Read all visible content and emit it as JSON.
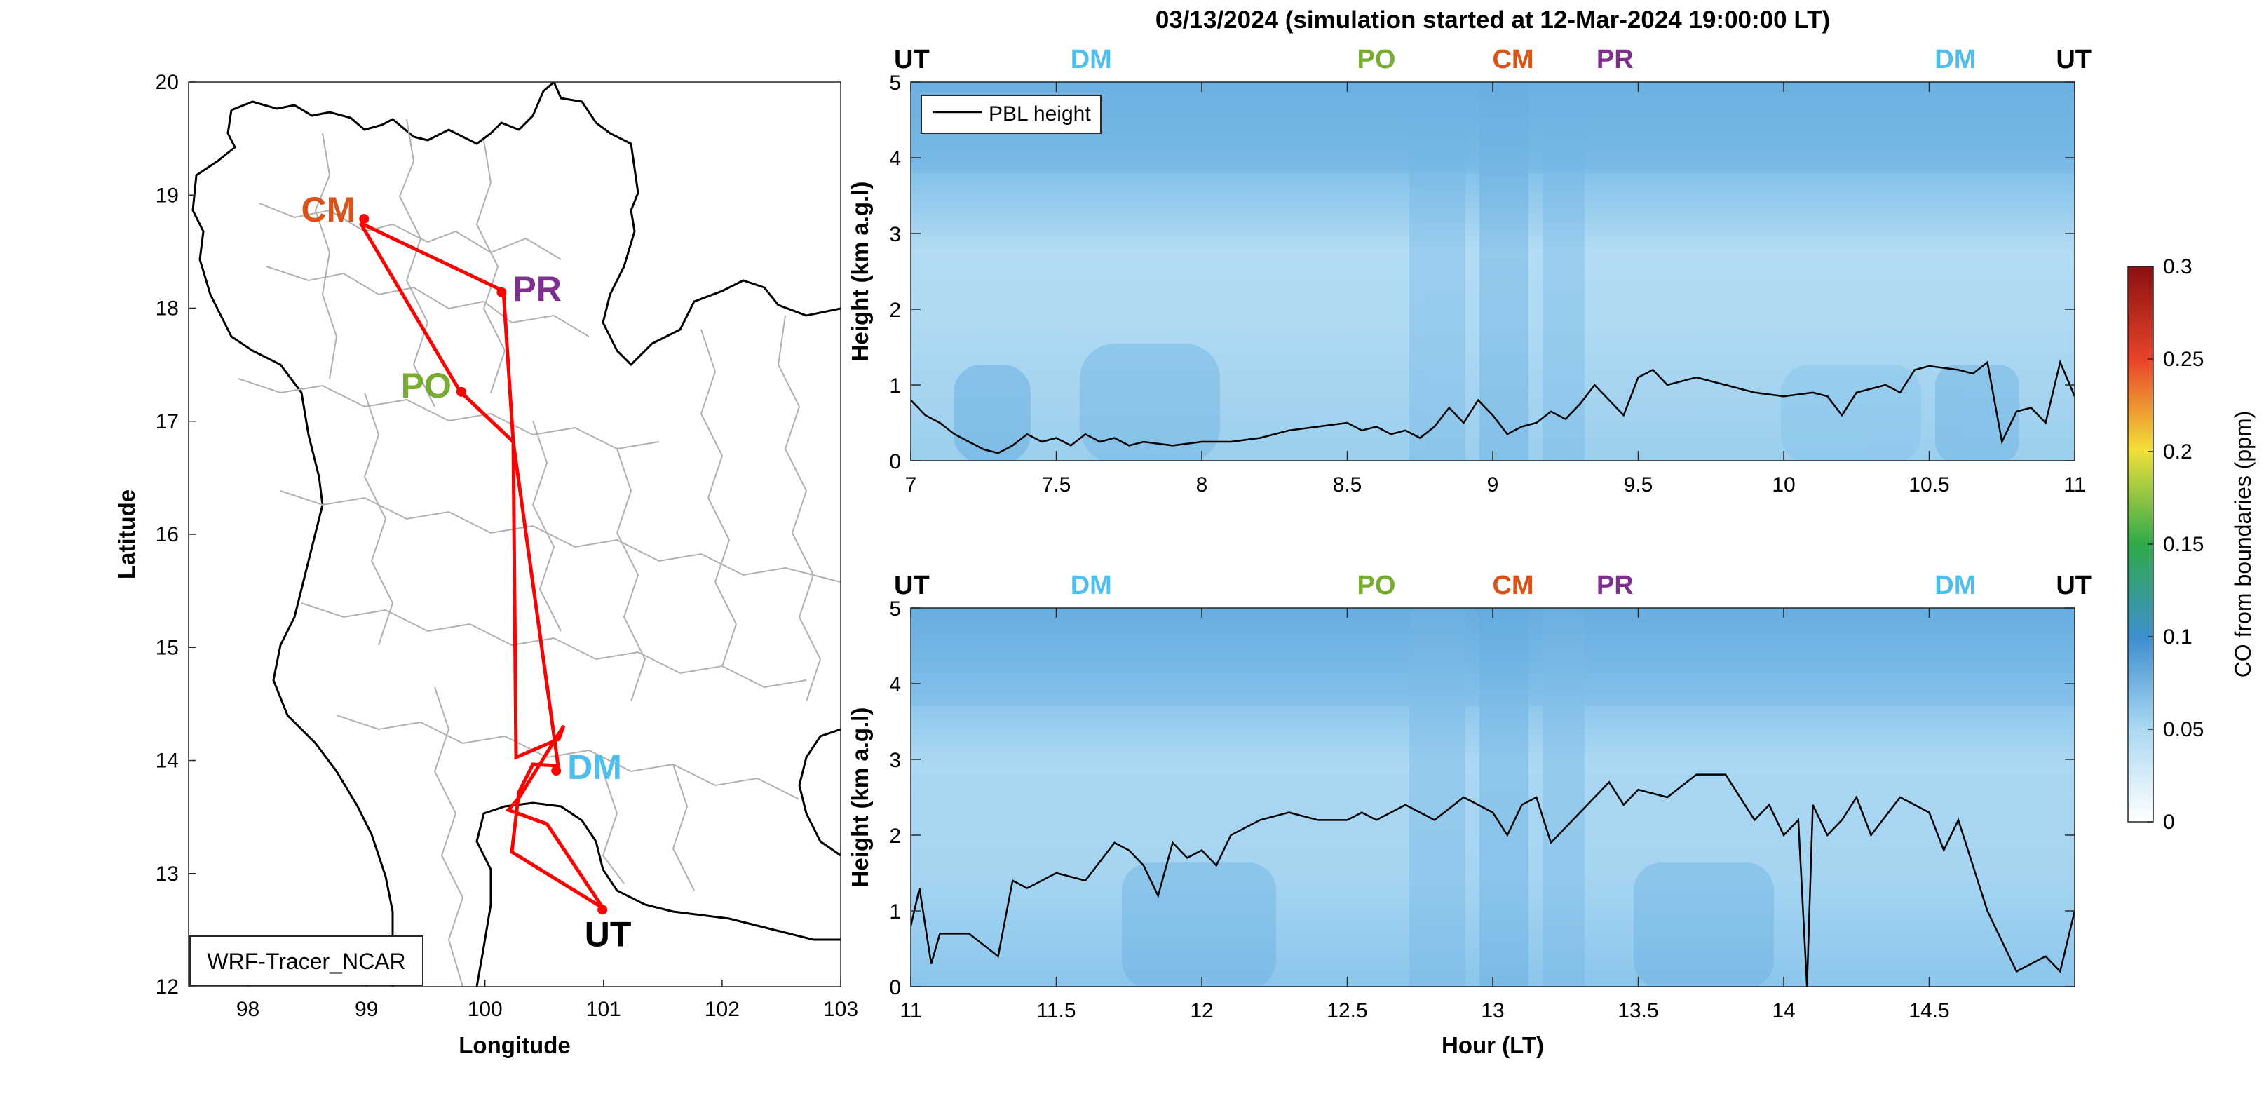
{
  "title": "03/13/2024 (simulation started at 12-Mar-2024 19:00:00 LT)",
  "colors": {
    "CM": "#d95319",
    "PR": "#7e2f8e",
    "PO": "#77ac30",
    "DM": "#4dbeee",
    "UT": "#000000",
    "route": "#ff0000",
    "border": "#b0b0b0",
    "coast": "#000000",
    "pbl": "#000000"
  },
  "map": {
    "label": "WRF-Tracer_NCAR",
    "xlabel": "Longitude",
    "ylabel": "Latitude",
    "xlim": [
      97.5,
      103
    ],
    "ylim": [
      12,
      20
    ],
    "xticks": [
      "98",
      "99",
      "100",
      "101",
      "102",
      "103"
    ],
    "yticks": [
      "12",
      "13",
      "14",
      "15",
      "16",
      "17",
      "18",
      "19",
      "20"
    ],
    "stations": [
      {
        "code": "CM",
        "lon": 98.98,
        "lat": 18.79
      },
      {
        "code": "PR",
        "lon": 100.14,
        "lat": 18.14
      },
      {
        "code": "PO",
        "lon": 99.8,
        "lat": 17.26
      },
      {
        "code": "DM",
        "lon": 100.6,
        "lat": 13.91
      },
      {
        "code": "UT",
        "lon": 100.99,
        "lat": 12.68
      }
    ]
  },
  "colorbar": {
    "label": "CO from boundaries (ppm)",
    "ticks": [
      "0",
      "0.05",
      "0.1",
      "0.15",
      "0.2",
      "0.25",
      "0.3"
    ],
    "range": [
      0,
      0.3
    ],
    "colormap": "white-blue-green-yellow-red"
  },
  "chart_data": [
    {
      "type": "heatmap",
      "panel": "top",
      "xlim": [
        7,
        11
      ],
      "ylim": [
        0,
        5
      ],
      "xticks": [
        "7",
        "7.5",
        "8",
        "8.5",
        "9",
        "9.5",
        "10",
        "10.5",
        "11"
      ],
      "yticks": [
        "0",
        "1",
        "2",
        "3",
        "4",
        "5"
      ],
      "ylabel": "Height (km a.g.l)",
      "xlabel": "",
      "legend": "PBL height",
      "site_labels": [
        {
          "code": "UT",
          "hour": 7.0
        },
        {
          "code": "DM",
          "hour": 7.62
        },
        {
          "code": "PO",
          "hour": 8.6
        },
        {
          "code": "CM",
          "hour": 9.07
        },
        {
          "code": "PR",
          "hour": 9.42
        },
        {
          "code": "DM",
          "hour": 10.59
        },
        {
          "code": "UT",
          "hour": 11.0
        }
      ],
      "pbl_height": {
        "x": [
          7.0,
          7.05,
          7.1,
          7.15,
          7.2,
          7.25,
          7.3,
          7.35,
          7.4,
          7.45,
          7.5,
          7.55,
          7.6,
          7.65,
          7.7,
          7.75,
          7.8,
          7.9,
          8.0,
          8.1,
          8.2,
          8.3,
          8.4,
          8.5,
          8.55,
          8.6,
          8.65,
          8.7,
          8.75,
          8.8,
          8.85,
          8.9,
          8.95,
          9.0,
          9.05,
          9.1,
          9.15,
          9.2,
          9.25,
          9.3,
          9.35,
          9.4,
          9.45,
          9.5,
          9.55,
          9.6,
          9.7,
          9.8,
          9.9,
          10.0,
          10.1,
          10.15,
          10.2,
          10.25,
          10.3,
          10.35,
          10.4,
          10.45,
          10.5,
          10.6,
          10.65,
          10.7,
          10.75,
          10.8,
          10.85,
          10.9,
          10.95,
          11.0
        ],
        "y": [
          0.8,
          0.6,
          0.5,
          0.35,
          0.25,
          0.15,
          0.1,
          0.2,
          0.35,
          0.25,
          0.3,
          0.2,
          0.35,
          0.25,
          0.3,
          0.2,
          0.25,
          0.2,
          0.25,
          0.25,
          0.3,
          0.4,
          0.45,
          0.5,
          0.4,
          0.45,
          0.35,
          0.4,
          0.3,
          0.45,
          0.7,
          0.5,
          0.8,
          0.6,
          0.35,
          0.45,
          0.5,
          0.65,
          0.55,
          0.75,
          1.0,
          0.8,
          0.6,
          1.1,
          1.2,
          1.0,
          1.1,
          1.0,
          0.9,
          0.85,
          0.9,
          0.85,
          0.6,
          0.9,
          0.95,
          1.0,
          0.9,
          1.2,
          1.25,
          1.2,
          1.15,
          1.3,
          0.25,
          0.65,
          0.7,
          0.5,
          1.3,
          0.85
        ]
      }
    },
    {
      "type": "heatmap",
      "panel": "bottom",
      "xlim": [
        11,
        15
      ],
      "ylim": [
        0,
        5
      ],
      "xticks": [
        "11",
        "11.5",
        "12",
        "12.5",
        "13",
        "13.5",
        "14",
        "14.5"
      ],
      "yticks": [
        "0",
        "1",
        "2",
        "3",
        "4",
        "5"
      ],
      "ylabel": "Height (km a.g.l)",
      "xlabel": "Hour (LT)",
      "site_labels": [
        {
          "code": "UT",
          "hour": 11.0
        },
        {
          "code": "DM",
          "hour": 11.62
        },
        {
          "code": "PO",
          "hour": 12.6
        },
        {
          "code": "CM",
          "hour": 13.07
        },
        {
          "code": "PR",
          "hour": 13.42
        },
        {
          "code": "DM",
          "hour": 14.59
        },
        {
          "code": "UT",
          "hour": 15.0
        }
      ],
      "pbl_height": {
        "x": [
          11.0,
          11.03,
          11.07,
          11.1,
          11.2,
          11.3,
          11.35,
          11.4,
          11.5,
          11.6,
          11.7,
          11.75,
          11.8,
          11.85,
          11.9,
          11.95,
          12.0,
          12.05,
          12.1,
          12.15,
          12.2,
          12.3,
          12.4,
          12.5,
          12.55,
          12.6,
          12.7,
          12.8,
          12.9,
          13.0,
          13.05,
          13.1,
          13.15,
          13.2,
          13.3,
          13.4,
          13.45,
          13.5,
          13.6,
          13.7,
          13.8,
          13.9,
          13.95,
          14.0,
          14.05,
          14.08,
          14.1,
          14.15,
          14.2,
          14.25,
          14.3,
          14.4,
          14.5,
          14.55,
          14.6,
          14.7,
          14.8,
          14.9,
          14.95,
          15.0
        ],
        "y": [
          0.8,
          1.3,
          0.3,
          0.7,
          0.7,
          0.4,
          1.4,
          1.3,
          1.5,
          1.4,
          1.9,
          1.8,
          1.6,
          1.2,
          1.9,
          1.7,
          1.8,
          1.6,
          2.0,
          2.1,
          2.2,
          2.3,
          2.2,
          2.2,
          2.3,
          2.2,
          2.4,
          2.2,
          2.5,
          2.3,
          2.0,
          2.4,
          2.5,
          1.9,
          2.3,
          2.7,
          2.4,
          2.6,
          2.5,
          2.8,
          2.8,
          2.2,
          2.4,
          2.0,
          2.2,
          0.0,
          2.4,
          2.0,
          2.2,
          2.5,
          2.0,
          2.5,
          2.3,
          1.8,
          2.2,
          1.0,
          0.2,
          0.4,
          0.2,
          1.0
        ]
      }
    }
  ]
}
